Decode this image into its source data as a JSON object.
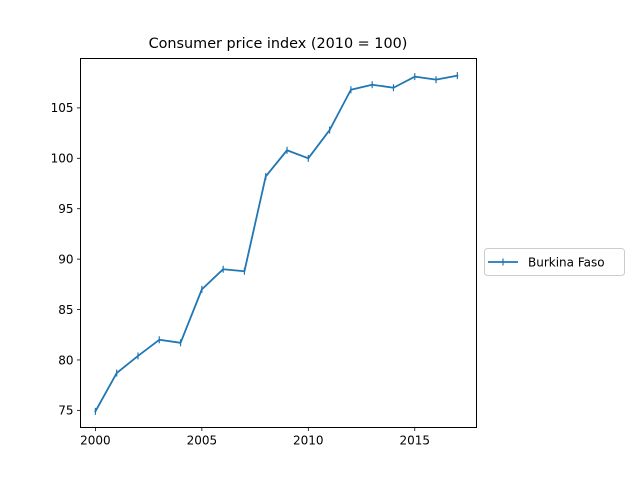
{
  "chart_data": {
    "type": "line",
    "title": "Consumer price index (2010 = 100)",
    "xlabel": "",
    "ylabel": "",
    "x": [
      2000,
      2001,
      2002,
      2003,
      2004,
      2005,
      2006,
      2007,
      2008,
      2009,
      2010,
      2011,
      2012,
      2013,
      2014,
      2015,
      2016,
      2017
    ],
    "series": [
      {
        "name": "Burkina Faso",
        "color": "#1f77b4",
        "marker": "vertical-tick",
        "values": [
          74.9,
          78.7,
          80.4,
          82.0,
          81.7,
          87.0,
          89.0,
          88.8,
          98.2,
          100.8,
          100.0,
          102.8,
          106.8,
          107.3,
          107.0,
          108.1,
          107.8,
          108.2
        ]
      }
    ],
    "xlim": [
      1999.3,
      2017.9
    ],
    "ylim": [
      73.3,
      109.9
    ],
    "xticks": [
      2000,
      2005,
      2010,
      2015
    ],
    "yticks": [
      75,
      80,
      85,
      90,
      95,
      100,
      105
    ],
    "grid": false,
    "legend_position": "center-right-outside"
  }
}
